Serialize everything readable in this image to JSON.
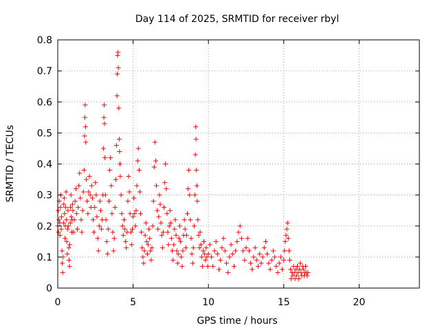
{
  "chart_data": {
    "type": "scatter",
    "title": "Day 114 of 2025, SRMTID for receiver rbyl",
    "xlabel": "GPS time / hours",
    "ylabel": "SRMTID / TECUs",
    "xlim": [
      0,
      24
    ],
    "ylim": [
      0,
      0.8
    ],
    "xticks": [
      0,
      5,
      10,
      15,
      20
    ],
    "xtick_labels": [
      "0",
      "5",
      "10",
      "15",
      "20"
    ],
    "yticks": [
      0,
      0.1,
      0.2,
      0.3,
      0.4,
      0.5,
      0.6,
      0.7,
      0.8
    ],
    "ytick_labels": [
      "0",
      "0.1",
      "0.2",
      "0.3",
      "0.4",
      "0.5",
      "0.6",
      "0.7",
      "0.8"
    ],
    "grid": true,
    "marker": "plus",
    "color": "#ff0000",
    "series": [
      {
        "name": "SRMTID",
        "points": [
          [
            0.0,
            0.2
          ],
          [
            0.03,
            0.25
          ],
          [
            0.05,
            0.18
          ],
          [
            0.08,
            0.22
          ],
          [
            0.1,
            0.28
          ],
          [
            0.13,
            0.21
          ],
          [
            0.15,
            0.17
          ],
          [
            0.18,
            0.26
          ],
          [
            0.2,
            0.3
          ],
          [
            0.23,
            0.19
          ],
          [
            0.25,
            0.23
          ],
          [
            0.28,
            0.12
          ],
          [
            0.3,
            0.08
          ],
          [
            0.33,
            0.05
          ],
          [
            0.35,
            0.1
          ],
          [
            0.38,
            0.21
          ],
          [
            0.4,
            0.27
          ],
          [
            0.43,
            0.29
          ],
          [
            0.45,
            0.24
          ],
          [
            0.48,
            0.16
          ],
          [
            0.5,
            0.2
          ],
          [
            0.53,
            0.26
          ],
          [
            0.55,
            0.31
          ],
          [
            0.58,
            0.22
          ],
          [
            0.6,
            0.15
          ],
          [
            0.63,
            0.11
          ],
          [
            0.65,
            0.19
          ],
          [
            0.68,
            0.25
          ],
          [
            0.7,
            0.2
          ],
          [
            0.73,
            0.13
          ],
          [
            0.75,
            0.09
          ],
          [
            0.78,
            0.07
          ],
          [
            0.8,
            0.14
          ],
          [
            0.83,
            0.21
          ],
          [
            0.85,
            0.26
          ],
          [
            0.88,
            0.3
          ],
          [
            0.9,
            0.23
          ],
          [
            0.93,
            0.18
          ],
          [
            0.95,
            0.22
          ],
          [
            0.98,
            0.27
          ],
          [
            1.0,
            0.25
          ],
          [
            1.05,
            0.18
          ],
          [
            1.1,
            0.22
          ],
          [
            1.15,
            0.28
          ],
          [
            1.2,
            0.32
          ],
          [
            1.25,
            0.24
          ],
          [
            1.3,
            0.19
          ],
          [
            1.35,
            0.26
          ],
          [
            1.4,
            0.33
          ],
          [
            1.45,
            0.37
          ],
          [
            1.5,
            0.29
          ],
          [
            1.55,
            0.22
          ],
          [
            1.6,
            0.18
          ],
          [
            1.65,
            0.25
          ],
          [
            1.7,
            0.31
          ],
          [
            1.75,
            0.38
          ],
          [
            1.78,
            0.49
          ],
          [
            1.8,
            0.55
          ],
          [
            1.82,
            0.59
          ],
          [
            1.84,
            0.52
          ],
          [
            1.86,
            0.47
          ],
          [
            1.9,
            0.35
          ],
          [
            1.95,
            0.28
          ],
          [
            2.0,
            0.24
          ],
          [
            2.05,
            0.31
          ],
          [
            2.1,
            0.36
          ],
          [
            2.15,
            0.3
          ],
          [
            2.2,
            0.26
          ],
          [
            2.25,
            0.33
          ],
          [
            2.3,
            0.29
          ],
          [
            2.35,
            0.22
          ],
          [
            2.4,
            0.18
          ],
          [
            2.45,
            0.26
          ],
          [
            2.5,
            0.34
          ],
          [
            2.55,
            0.3
          ],
          [
            2.6,
            0.23
          ],
          [
            2.65,
            0.16
          ],
          [
            2.7,
            0.12
          ],
          [
            2.75,
            0.2
          ],
          [
            2.8,
            0.28
          ],
          [
            2.85,
            0.25
          ],
          [
            2.9,
            0.19
          ],
          [
            2.95,
            0.22
          ],
          [
            3.0,
            0.3
          ],
          [
            3.03,
            0.45
          ],
          [
            3.06,
            0.55
          ],
          [
            3.08,
            0.59
          ],
          [
            3.1,
            0.53
          ],
          [
            3.13,
            0.42
          ],
          [
            3.16,
            0.3
          ],
          [
            3.2,
            0.22
          ],
          [
            3.25,
            0.15
          ],
          [
            3.3,
            0.11
          ],
          [
            3.35,
            0.19
          ],
          [
            3.4,
            0.28
          ],
          [
            3.45,
            0.38
          ],
          [
            3.5,
            0.42
          ],
          [
            3.55,
            0.33
          ],
          [
            3.6,
            0.24
          ],
          [
            3.65,
            0.18
          ],
          [
            3.7,
            0.12
          ],
          [
            3.75,
            0.16
          ],
          [
            3.8,
            0.26
          ],
          [
            3.85,
            0.35
          ],
          [
            3.9,
            0.46
          ],
          [
            3.93,
            0.62
          ],
          [
            3.95,
            0.69
          ],
          [
            3.97,
            0.75
          ],
          [
            4.0,
            0.76
          ],
          [
            4.02,
            0.71
          ],
          [
            4.05,
            0.58
          ],
          [
            4.08,
            0.48
          ],
          [
            4.1,
            0.44
          ],
          [
            4.13,
            0.4
          ],
          [
            4.15,
            0.36
          ],
          [
            4.2,
            0.3
          ],
          [
            4.25,
            0.24
          ],
          [
            4.3,
            0.2
          ],
          [
            4.35,
            0.17
          ],
          [
            4.4,
            0.22
          ],
          [
            4.45,
            0.19
          ],
          [
            4.5,
            0.15
          ],
          [
            4.55,
            0.13
          ],
          [
            4.6,
            0.18
          ],
          [
            4.65,
            0.28
          ],
          [
            4.7,
            0.36
          ],
          [
            4.75,
            0.31
          ],
          [
            4.8,
            0.24
          ],
          [
            4.85,
            0.18
          ],
          [
            4.9,
            0.14
          ],
          [
            4.95,
            0.19
          ],
          [
            5.0,
            0.23
          ],
          [
            5.05,
            0.29
          ],
          [
            5.1,
            0.24
          ],
          [
            5.15,
            0.2
          ],
          [
            5.2,
            0.25
          ],
          [
            5.25,
            0.33
          ],
          [
            5.3,
            0.41
          ],
          [
            5.35,
            0.45
          ],
          [
            5.4,
            0.38
          ],
          [
            5.45,
            0.31
          ],
          [
            5.5,
            0.24
          ],
          [
            5.55,
            0.18
          ],
          [
            5.6,
            0.13
          ],
          [
            5.65,
            0.1
          ],
          [
            5.7,
            0.08
          ],
          [
            5.75,
            0.12
          ],
          [
            5.8,
            0.17
          ],
          [
            5.85,
            0.21
          ],
          [
            5.9,
            0.15
          ],
          [
            5.95,
            0.11
          ],
          [
            6.0,
            0.14
          ],
          [
            6.05,
            0.19
          ],
          [
            6.1,
            0.16
          ],
          [
            6.15,
            0.12
          ],
          [
            6.2,
            0.09
          ],
          [
            6.25,
            0.13
          ],
          [
            6.3,
            0.2
          ],
          [
            6.35,
            0.28
          ],
          [
            6.4,
            0.39
          ],
          [
            6.45,
            0.47
          ],
          [
            6.5,
            0.41
          ],
          [
            6.55,
            0.33
          ],
          [
            6.6,
            0.25
          ],
          [
            6.65,
            0.19
          ],
          [
            6.7,
            0.23
          ],
          [
            6.75,
            0.3
          ],
          [
            6.8,
            0.27
          ],
          [
            6.85,
            0.21
          ],
          [
            6.9,
            0.17
          ],
          [
            6.95,
            0.13
          ],
          [
            7.0,
            0.18
          ],
          [
            7.05,
            0.26
          ],
          [
            7.1,
            0.34
          ],
          [
            7.15,
            0.4
          ],
          [
            7.2,
            0.32
          ],
          [
            7.25,
            0.24
          ],
          [
            7.3,
            0.18
          ],
          [
            7.35,
            0.14
          ],
          [
            7.4,
            0.2
          ],
          [
            7.45,
            0.25
          ],
          [
            7.5,
            0.21
          ],
          [
            7.55,
            0.16
          ],
          [
            7.6,
            0.12
          ],
          [
            7.65,
            0.09
          ],
          [
            7.7,
            0.14
          ],
          [
            7.75,
            0.19
          ],
          [
            7.8,
            0.22
          ],
          [
            7.85,
            0.17
          ],
          [
            7.9,
            0.12
          ],
          [
            7.95,
            0.08
          ],
          [
            8.0,
            0.11
          ],
          [
            8.05,
            0.16
          ],
          [
            8.1,
            0.2
          ],
          [
            8.15,
            0.15
          ],
          [
            8.2,
            0.1
          ],
          [
            8.25,
            0.07
          ],
          [
            8.3,
            0.12
          ],
          [
            8.35,
            0.17
          ],
          [
            8.4,
            0.22
          ],
          [
            8.45,
            0.19
          ],
          [
            8.5,
            0.13
          ],
          [
            8.55,
            0.17
          ],
          [
            8.6,
            0.24
          ],
          [
            8.65,
            0.32
          ],
          [
            8.7,
            0.38
          ],
          [
            8.75,
            0.3
          ],
          [
            8.8,
            0.22
          ],
          [
            8.85,
            0.16
          ],
          [
            8.9,
            0.11
          ],
          [
            8.95,
            0.08
          ],
          [
            9.0,
            0.13
          ],
          [
            9.05,
            0.2
          ],
          [
            9.1,
            0.3
          ],
          [
            9.13,
            0.43
          ],
          [
            9.16,
            0.52
          ],
          [
            9.18,
            0.48
          ],
          [
            9.2,
            0.38
          ],
          [
            9.23,
            0.33
          ],
          [
            9.26,
            0.28
          ],
          [
            9.3,
            0.22
          ],
          [
            9.35,
            0.17
          ],
          [
            9.4,
            0.13
          ],
          [
            9.45,
            0.18
          ],
          [
            9.5,
            0.14
          ],
          [
            9.55,
            0.1
          ],
          [
            9.6,
            0.07
          ],
          [
            9.65,
            0.12
          ],
          [
            9.7,
            0.15
          ],
          [
            9.75,
            0.11
          ],
          [
            9.8,
            0.09
          ],
          [
            9.85,
            0.13
          ],
          [
            9.9,
            0.1
          ],
          [
            9.95,
            0.07
          ],
          [
            10.0,
            0.11
          ],
          [
            10.1,
            0.14
          ],
          [
            10.2,
            0.1
          ],
          [
            10.3,
            0.07
          ],
          [
            10.4,
            0.12
          ],
          [
            10.5,
            0.15
          ],
          [
            10.6,
            0.11
          ],
          [
            10.7,
            0.06
          ],
          [
            10.8,
            0.09
          ],
          [
            10.9,
            0.13
          ],
          [
            11.0,
            0.16
          ],
          [
            11.1,
            0.12
          ],
          [
            11.2,
            0.08
          ],
          [
            11.3,
            0.05
          ],
          [
            11.4,
            0.1
          ],
          [
            11.5,
            0.14
          ],
          [
            11.6,
            0.11
          ],
          [
            11.7,
            0.07
          ],
          [
            11.8,
            0.12
          ],
          [
            11.9,
            0.15
          ],
          [
            12.0,
            0.18
          ],
          [
            12.1,
            0.2
          ],
          [
            12.2,
            0.16
          ],
          [
            12.3,
            0.12
          ],
          [
            12.4,
            0.09
          ],
          [
            12.5,
            0.13
          ],
          [
            12.6,
            0.16
          ],
          [
            12.7,
            0.12
          ],
          [
            12.8,
            0.08
          ],
          [
            12.9,
            0.06
          ],
          [
            13.0,
            0.1
          ],
          [
            13.1,
            0.13
          ],
          [
            13.2,
            0.09
          ],
          [
            13.3,
            0.07
          ],
          [
            13.4,
            0.11
          ],
          [
            13.5,
            0.08
          ],
          [
            13.6,
            0.1
          ],
          [
            13.7,
            0.13
          ],
          [
            13.8,
            0.15
          ],
          [
            13.9,
            0.11
          ],
          [
            14.0,
            0.08
          ],
          [
            14.1,
            0.06
          ],
          [
            14.2,
            0.09
          ],
          [
            14.3,
            0.12
          ],
          [
            14.4,
            0.1
          ],
          [
            14.5,
            0.07
          ],
          [
            14.6,
            0.05
          ],
          [
            14.7,
            0.08
          ],
          [
            14.8,
            0.1
          ],
          [
            14.9,
            0.06
          ],
          [
            15.0,
            0.09
          ],
          [
            15.05,
            0.12
          ],
          [
            15.1,
            0.15
          ],
          [
            15.15,
            0.17
          ],
          [
            15.2,
            0.19
          ],
          [
            15.25,
            0.21
          ],
          [
            15.3,
            0.16
          ],
          [
            15.35,
            0.12
          ],
          [
            15.4,
            0.09
          ],
          [
            15.45,
            0.06
          ],
          [
            15.5,
            0.03
          ],
          [
            15.55,
            0.05
          ],
          [
            15.6,
            0.04
          ],
          [
            15.65,
            0.07
          ],
          [
            15.7,
            0.05
          ],
          [
            15.75,
            0.03
          ],
          [
            15.8,
            0.06
          ],
          [
            15.85,
            0.04
          ],
          [
            15.9,
            0.07
          ],
          [
            15.95,
            0.05
          ],
          [
            16.0,
            0.03
          ],
          [
            16.05,
            0.06
          ],
          [
            16.1,
            0.08
          ],
          [
            16.15,
            0.05
          ],
          [
            16.2,
            0.04
          ],
          [
            16.25,
            0.07
          ],
          [
            16.3,
            0.06
          ],
          [
            16.35,
            0.04
          ],
          [
            16.4,
            0.05
          ],
          [
            16.45,
            0.07
          ],
          [
            16.5,
            0.05
          ],
          [
            16.55,
            0.04
          ],
          [
            16.6,
            0.05
          ]
        ]
      }
    ]
  }
}
